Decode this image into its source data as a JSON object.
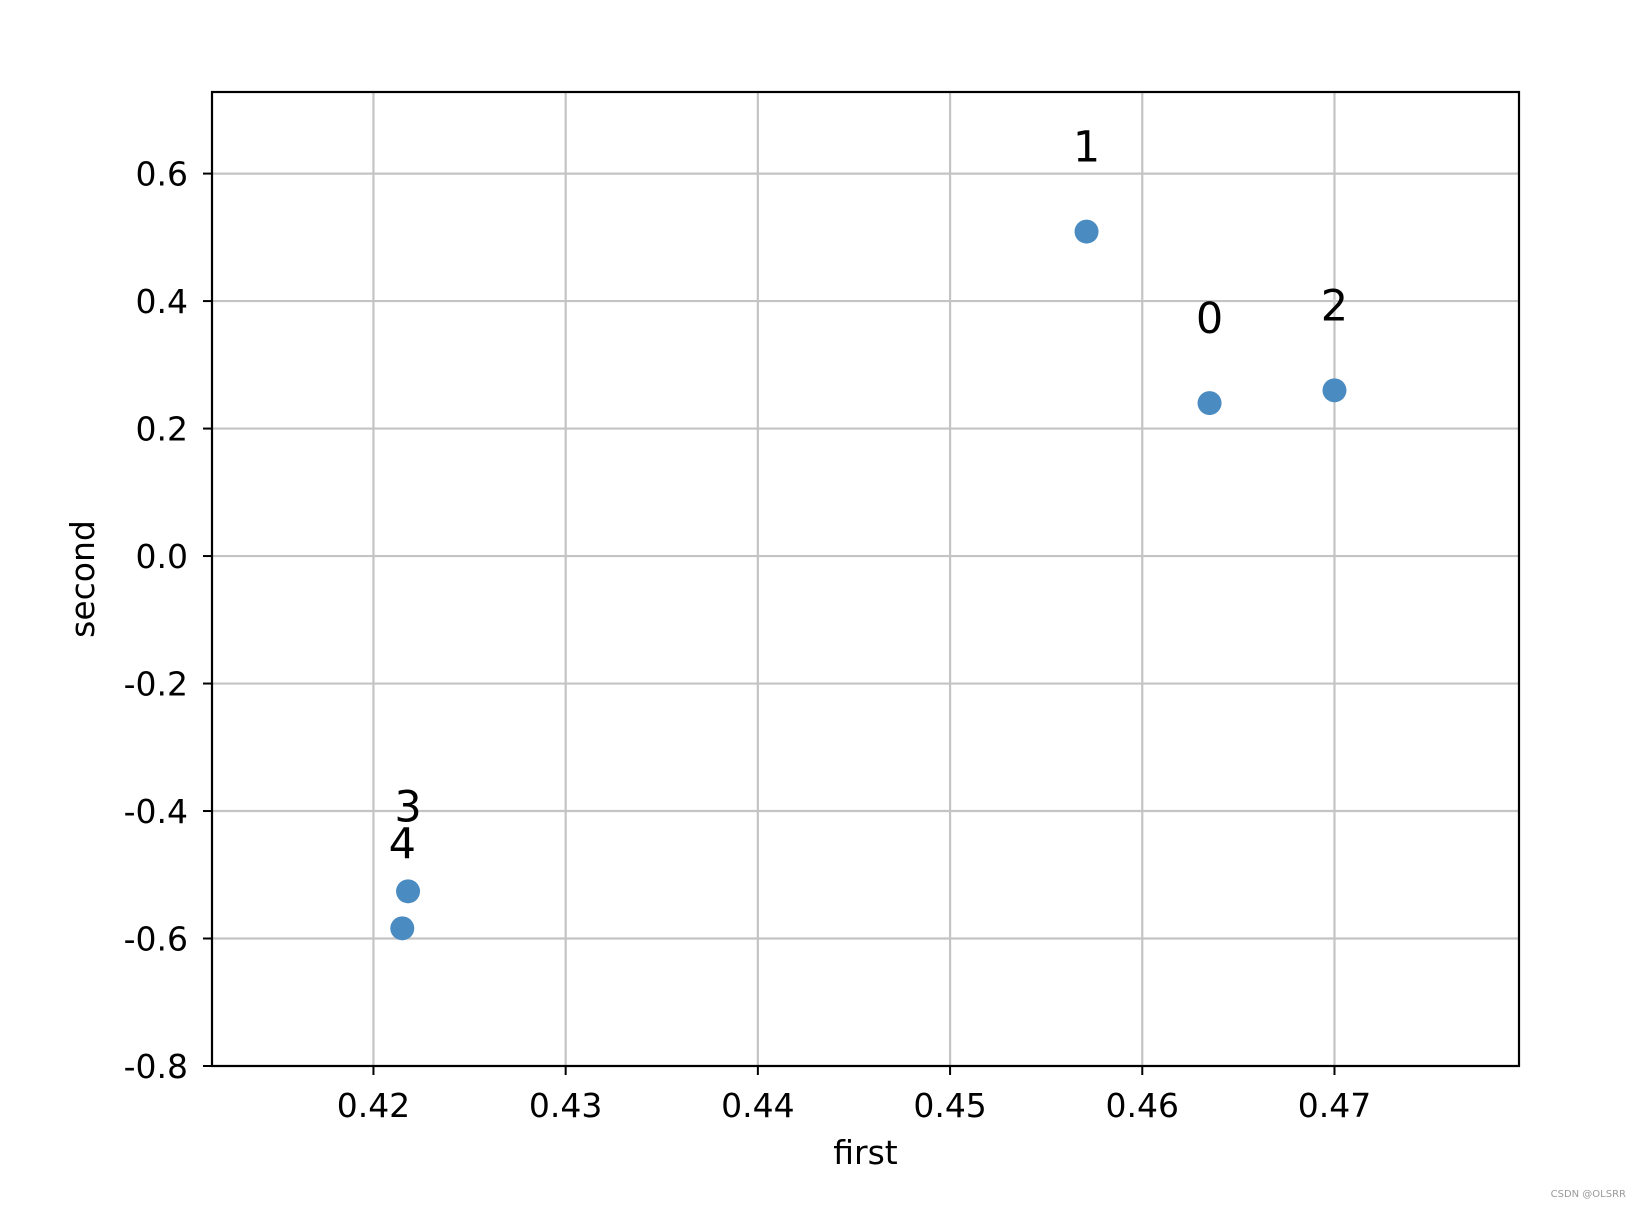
{
  "chart_data": {
    "type": "scatter",
    "xlabel": "first",
    "ylabel": "second",
    "xlim": [
      0.4116,
      0.4796
    ],
    "ylim": [
      -0.8,
      0.728
    ],
    "xticks": [
      0.42,
      0.43,
      0.44,
      0.45,
      0.46,
      0.47
    ],
    "xtick_labels": [
      "0.42",
      "0.43",
      "0.44",
      "0.45",
      "0.46",
      "0.47"
    ],
    "yticks": [
      0.6,
      0.4,
      0.2,
      0.0,
      -0.2,
      -0.4,
      -0.6,
      -0.8
    ],
    "ytick_labels": [
      "0.6",
      "0.4",
      "0.2",
      "0.0",
      "-0.2",
      "-0.4",
      "-0.6",
      "-0.8"
    ],
    "grid": true,
    "marker_color": "#4a8bc2",
    "points": [
      {
        "label": "0",
        "x": 0.4635,
        "y": 0.24
      },
      {
        "label": "1",
        "x": 0.4571,
        "y": 0.509
      },
      {
        "label": "2",
        "x": 0.47,
        "y": 0.26
      },
      {
        "label": "3",
        "x": 0.4218,
        "y": -0.526
      },
      {
        "label": "4",
        "x": 0.4215,
        "y": -0.584
      }
    ]
  },
  "watermark": "CSDN @OLSRR"
}
